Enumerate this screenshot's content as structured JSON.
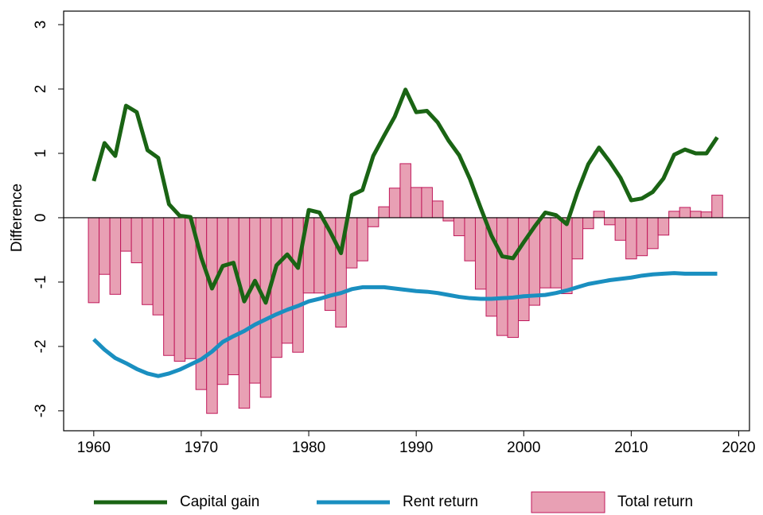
{
  "chart_data": {
    "type": "combo",
    "ylabel": "Difference",
    "xlim": [
      1957.2,
      2021.0
    ],
    "ylim": [
      -3.31,
      3.21
    ],
    "xticks": [
      1960,
      1970,
      1980,
      1990,
      2000,
      2010,
      2020
    ],
    "yticks": [
      -3,
      -2,
      -1,
      0,
      1,
      2,
      3
    ],
    "zero_line": true,
    "legend": "bottom",
    "x": [
      1960,
      1961,
      1962,
      1963,
      1964,
      1965,
      1966,
      1967,
      1968,
      1969,
      1970,
      1971,
      1972,
      1973,
      1974,
      1975,
      1976,
      1977,
      1978,
      1979,
      1980,
      1981,
      1982,
      1983,
      1984,
      1985,
      1986,
      1987,
      1988,
      1989,
      1990,
      1991,
      1992,
      1993,
      1994,
      1995,
      1996,
      1997,
      1998,
      1999,
      2000,
      2001,
      2002,
      2003,
      2004,
      2005,
      2006,
      2007,
      2008,
      2009,
      2010,
      2011,
      2012,
      2013,
      2014,
      2015,
      2016,
      2017,
      2018
    ],
    "series": [
      {
        "name": "Capital gain",
        "kind": "line",
        "color": "#1a6414",
        "values": [
          0.57,
          1.16,
          0.96,
          1.74,
          1.64,
          1.05,
          0.93,
          0.21,
          0.03,
          0.01,
          -0.62,
          -1.1,
          -0.75,
          -0.7,
          -1.3,
          -0.98,
          -1.32,
          -0.74,
          -0.57,
          -0.78,
          0.12,
          0.08,
          -0.22,
          -0.55,
          0.35,
          0.43,
          0.96,
          1.27,
          1.57,
          1.99,
          1.64,
          1.66,
          1.48,
          1.2,
          0.97,
          0.6,
          0.15,
          -0.28,
          -0.6,
          -0.63,
          -0.38,
          -0.14,
          0.08,
          0.04,
          -0.1,
          0.4,
          0.83,
          1.09,
          0.87,
          0.62,
          0.27,
          0.3,
          0.4,
          0.61,
          0.98,
          1.06,
          1.0,
          1.0,
          1.25
        ]
      },
      {
        "name": "Rent return",
        "kind": "line",
        "color": "#1a8fc0",
        "values": [
          -1.89,
          -2.05,
          -2.18,
          -2.26,
          -2.35,
          -2.42,
          -2.46,
          -2.42,
          -2.36,
          -2.28,
          -2.2,
          -2.08,
          -1.93,
          -1.84,
          -1.76,
          -1.66,
          -1.58,
          -1.5,
          -1.43,
          -1.37,
          -1.3,
          -1.26,
          -1.21,
          -1.17,
          -1.11,
          -1.08,
          -1.08,
          -1.08,
          -1.1,
          -1.12,
          -1.14,
          -1.15,
          -1.17,
          -1.2,
          -1.23,
          -1.25,
          -1.26,
          -1.26,
          -1.25,
          -1.24,
          -1.22,
          -1.21,
          -1.2,
          -1.17,
          -1.13,
          -1.08,
          -1.03,
          -1.0,
          -0.97,
          -0.95,
          -0.93,
          -0.9,
          -0.88,
          -0.87,
          -0.86,
          -0.87,
          -0.87,
          -0.87,
          -0.87
        ]
      },
      {
        "name": "Total return",
        "kind": "bar",
        "color": "#e8a0b4",
        "edge": "#c0185a",
        "values": [
          -1.32,
          -0.88,
          -1.19,
          -0.52,
          -0.7,
          -1.35,
          -1.51,
          -2.14,
          -2.23,
          -2.19,
          -2.67,
          -3.04,
          -2.59,
          -2.44,
          -2.96,
          -2.57,
          -2.79,
          -2.17,
          -1.95,
          -2.09,
          -1.17,
          -1.17,
          -1.44,
          -1.7,
          -0.78,
          -0.67,
          -0.14,
          0.17,
          0.46,
          0.84,
          0.47,
          0.47,
          0.26,
          -0.05,
          -0.28,
          -0.67,
          -1.11,
          -1.53,
          -1.83,
          -1.86,
          -1.6,
          -1.36,
          -1.09,
          -1.09,
          -1.18,
          -0.64,
          -0.17,
          0.1,
          -0.11,
          -0.35,
          -0.64,
          -0.59,
          -0.48,
          -0.27,
          0.1,
          0.16,
          0.1,
          0.09,
          0.35
        ]
      }
    ]
  }
}
